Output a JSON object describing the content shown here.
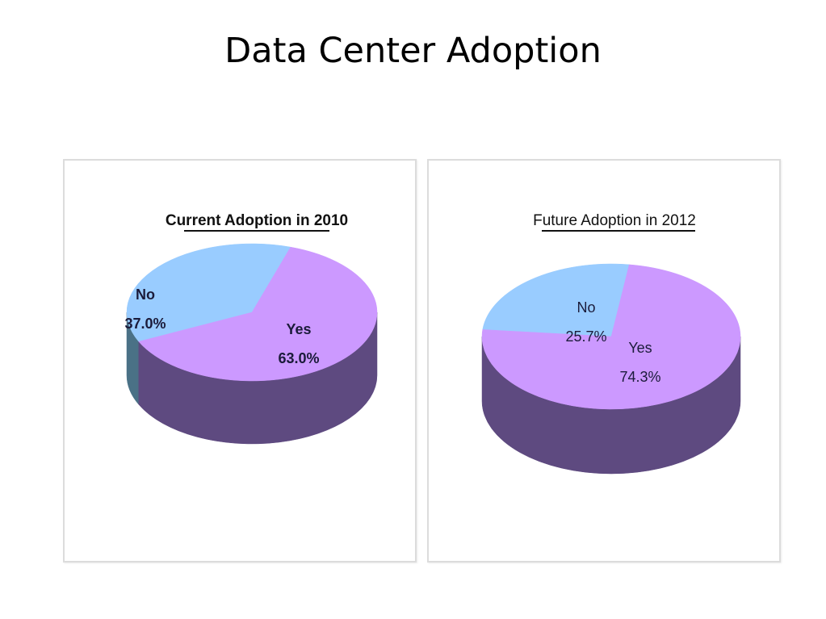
{
  "slide": {
    "title": "Data Center Adoption"
  },
  "colors": {
    "yes_top": "#cc99ff",
    "yes_side": "#5e4a80",
    "no_top": "#99ccff",
    "no_side": "#4a7186"
  },
  "chart_data": [
    {
      "type": "pie",
      "title": "Current Adoption in 2010",
      "categories": [
        "Yes",
        "No"
      ],
      "values": [
        63.0,
        37.0
      ],
      "labels": [
        "63.0%",
        "37.0%"
      ],
      "style": "3d"
    },
    {
      "type": "pie",
      "title": "Future Adoption in 2012",
      "categories": [
        "Yes",
        "No"
      ],
      "values": [
        74.3,
        25.7
      ],
      "labels": [
        "74.3%",
        "25.7%"
      ],
      "style": "3d"
    }
  ]
}
